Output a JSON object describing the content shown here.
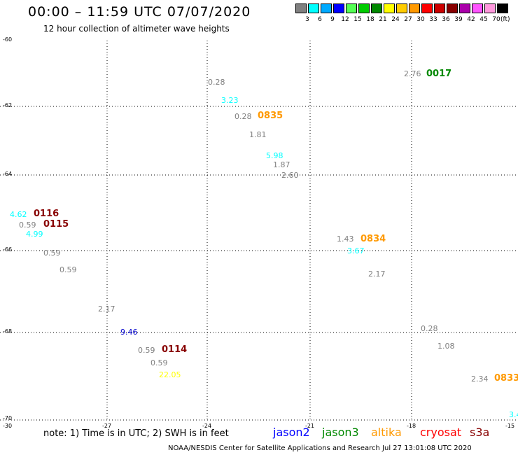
{
  "header": {
    "title": "00:00 – 11:59 UTC 07/07/2020",
    "subtitle": "12 hour collection of altimeter wave heights"
  },
  "legend": {
    "colors": [
      "#808080",
      "#00ffff",
      "#00aaff",
      "#0000ff",
      "#55ff55",
      "#00cc00",
      "#008800",
      "#ffff00",
      "#ffcc00",
      "#ff9900",
      "#ff0000",
      "#cc0000",
      "#880000",
      "#aa00aa",
      "#ff55ff",
      "#ff99dd",
      "#000000"
    ],
    "labels": [
      "3",
      "6",
      "9",
      "12",
      "15",
      "18",
      "21",
      "24",
      "27",
      "30",
      "33",
      "36",
      "39",
      "42",
      "45",
      "70"
    ],
    "unit": "(ft)"
  },
  "axes": {
    "y_labels": [
      "-60",
      "-62",
      "-64",
      "-66",
      "-68",
      "-70"
    ],
    "x_labels": [
      "-30",
      "-27",
      "-24",
      "-21",
      "-18",
      "-15"
    ]
  },
  "readings": [
    {
      "v": "0.28",
      "c": "#808080"
    },
    {
      "v": "2.76",
      "c": "#808080"
    },
    {
      "v": "3.23",
      "c": "#00ffff"
    },
    {
      "v": "0.28",
      "c": "#808080"
    },
    {
      "v": "1.81",
      "c": "#808080"
    },
    {
      "v": "5.98",
      "c": "#00ffff"
    },
    {
      "v": "1.87",
      "c": "#808080"
    },
    {
      "v": "2.60",
      "c": "#808080"
    },
    {
      "v": "4.62",
      "c": "#00ffff"
    },
    {
      "v": "0.59",
      "c": "#808080"
    },
    {
      "v": "4.99",
      "c": "#00ffff"
    },
    {
      "v": "0.59",
      "c": "#808080"
    },
    {
      "v": "0.59",
      "c": "#808080"
    },
    {
      "v": "1.43",
      "c": "#808080"
    },
    {
      "v": "3.67",
      "c": "#00ffff"
    },
    {
      "v": "2.17",
      "c": "#808080"
    },
    {
      "v": "2.17",
      "c": "#808080"
    },
    {
      "v": "9.46",
      "c": "#0000cc"
    },
    {
      "v": "0.28",
      "c": "#808080"
    },
    {
      "v": "0.59",
      "c": "#808080"
    },
    {
      "v": "1.08",
      "c": "#808080"
    },
    {
      "v": "0.59",
      "c": "#808080"
    },
    {
      "v": "22.05",
      "c": "#ffff00"
    },
    {
      "v": "2.34",
      "c": "#808080"
    },
    {
      "v": "3.4",
      "c": "#00ffff"
    }
  ],
  "passes": [
    {
      "t": "0017",
      "c": "#008800"
    },
    {
      "t": "0835",
      "c": "#ff9900"
    },
    {
      "t": "0116",
      "c": "#880000"
    },
    {
      "t": "0115",
      "c": "#880000"
    },
    {
      "t": "0834",
      "c": "#ff9900"
    },
    {
      "t": "0114",
      "c": "#880000"
    },
    {
      "t": "0833",
      "c": "#ff9900"
    }
  ],
  "note": "note: 1) Time is in UTC; 2) SWH is in feet",
  "satellites": [
    {
      "name": "jason2",
      "color": "#0000ff"
    },
    {
      "name": "jason3",
      "color": "#008800"
    },
    {
      "name": "altika",
      "color": "#ff9900"
    },
    {
      "name": "cryosat",
      "color": "#ff0000"
    },
    {
      "name": "s3a",
      "color": "#880000"
    }
  ],
  "credit": "NOAA/NESDIS Center for Satellite Applications and Research     Jul 27 13:01:08 UTC 2020"
}
